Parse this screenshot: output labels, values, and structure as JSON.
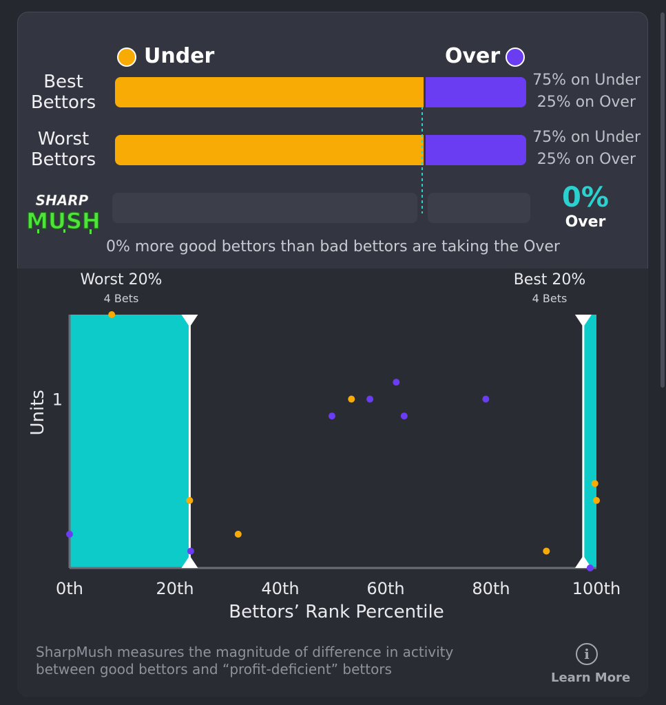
{
  "legend": {
    "under_label": "Under",
    "over_label": "Over",
    "under_color": "#f9ab05",
    "over_color": "#6a3df2"
  },
  "rows": [
    {
      "label_line1": "Best",
      "label_line2": "Bettors",
      "under_pct": 75,
      "over_pct": 25,
      "under_text": "75% on Under",
      "over_text": "25% on Over"
    },
    {
      "label_line1": "Worst",
      "label_line2": "Bettors",
      "under_pct": 75,
      "over_pct": 25,
      "under_text": "75% on Under",
      "over_text": "25% on Over"
    }
  ],
  "sharpmush": {
    "logo_top": "SHARP",
    "logo_bottom": "MUSH",
    "value_text": "0%",
    "side_label": "Over",
    "summary": "0% more good bettors than bad bettors are taking the Over"
  },
  "chart": {
    "worst_title": "Worst 20%",
    "worst_sub": "4 Bets",
    "best_title": "Best 20%",
    "best_sub": "4 Bets",
    "accent_color": "#0ccbc9"
  },
  "chart_data": {
    "type": "scatter",
    "xlabel": "Bettors’ Rank Percentile",
    "ylabel": "Units",
    "x_ticks": [
      "0th",
      "20th",
      "40th",
      "60th",
      "80th",
      "100th"
    ],
    "y_ticks": [
      "1"
    ],
    "xlim": [
      0,
      100
    ],
    "ylim": [
      0,
      1.5
    ],
    "shaded_ranges": [
      [
        0,
        22.8
      ],
      [
        97.5,
        100
      ]
    ],
    "series": [
      {
        "name": "Under",
        "color": "#f9ab05",
        "points": [
          [
            8,
            1.5
          ],
          [
            22.8,
            0.4
          ],
          [
            32,
            0.2
          ],
          [
            53.5,
            1.0
          ],
          [
            90.5,
            0.1
          ],
          [
            99.7,
            0.5
          ],
          [
            100,
            0.4
          ]
        ]
      },
      {
        "name": "Over",
        "color": "#6a3df2",
        "points": [
          [
            0,
            0.2
          ],
          [
            23,
            0.1
          ],
          [
            49.8,
            0.9
          ],
          [
            57,
            1.0
          ],
          [
            62,
            1.1
          ],
          [
            63.5,
            0.9
          ],
          [
            79,
            1.0
          ],
          [
            98.8,
            0.0
          ]
        ]
      }
    ]
  },
  "footer": {
    "line1": "SharpMush measures the magnitude of difference in activity",
    "line2": "between good bettors and “profit-deficient” bettors",
    "info_glyph": "i",
    "learn_more": "Learn More"
  }
}
